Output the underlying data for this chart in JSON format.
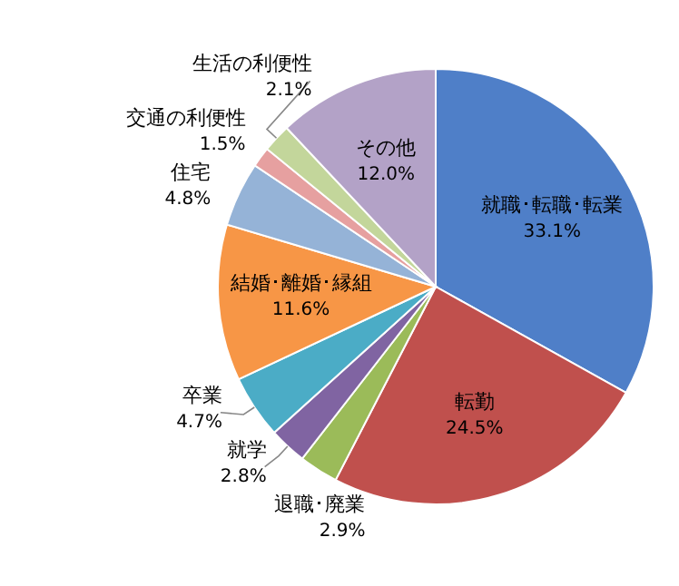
{
  "chart_data": {
    "type": "pie",
    "categories": [
      "就職･転職･転業",
      "転勤",
      "退職･廃業",
      "就学",
      "卒業",
      "結婚･離婚･縁組",
      "住宅",
      "交通の利便性",
      "生活の利便性",
      "その他"
    ],
    "values": [
      33.1,
      24.5,
      2.9,
      2.8,
      4.7,
      11.6,
      4.8,
      1.5,
      2.1,
      12.0
    ],
    "value_labels": [
      "33.1%",
      "24.5%",
      "2.9%",
      "2.8%",
      "4.7%",
      "11.6%",
      "4.8%",
      "1.5%",
      "2.1%",
      "12.0%"
    ],
    "colors": [
      "#4f7fc8",
      "#c0504d",
      "#9bbb59",
      "#8064a2",
      "#4bacc6",
      "#f79646",
      "#95b3d7",
      "#e6a0a0",
      "#c3d69b",
      "#b3a2c7"
    ]
  }
}
